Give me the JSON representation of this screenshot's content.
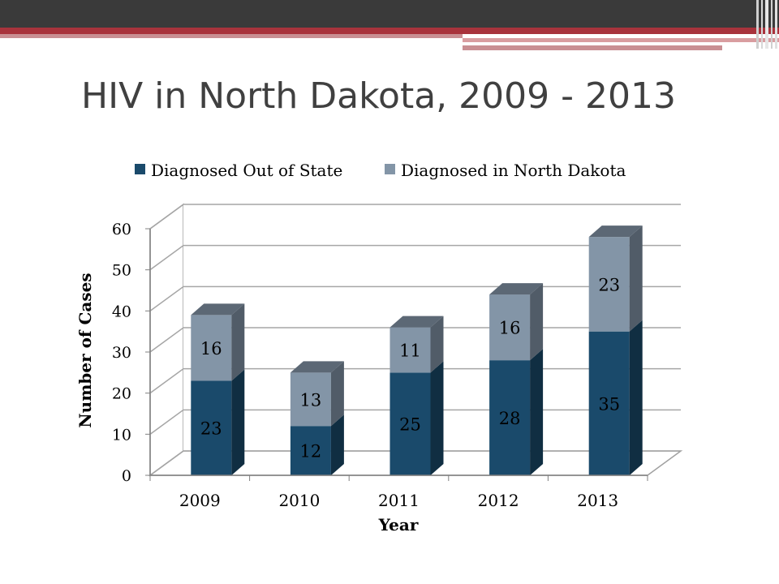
{
  "slide": {
    "title": "HIV in North Dakota, 2009 - 2013"
  },
  "colors": {
    "topbar": "#3a3a3a",
    "accent_red": "#a8333c",
    "series_out_of_state": "#1a4a6b",
    "series_in_nd": "#8395a7"
  },
  "chart_data": {
    "type": "bar",
    "stacked": true,
    "three_d": true,
    "title": "",
    "xlabel": "Year",
    "ylabel": "Number of Cases",
    "ylim": [
      0,
      60
    ],
    "yticks": [
      0,
      10,
      20,
      30,
      40,
      50,
      60
    ],
    "grid": true,
    "legend_position": "top",
    "categories": [
      "2009",
      "2010",
      "2011",
      "2012",
      "2013"
    ],
    "series": [
      {
        "name": "Diagnosed Out of State",
        "values": [
          23,
          12,
          25,
          28,
          35
        ],
        "color": "#1a4a6b"
      },
      {
        "name": "Diagnosed in North Dakota",
        "values": [
          16,
          13,
          11,
          16,
          23
        ],
        "color": "#8395a7"
      }
    ]
  }
}
